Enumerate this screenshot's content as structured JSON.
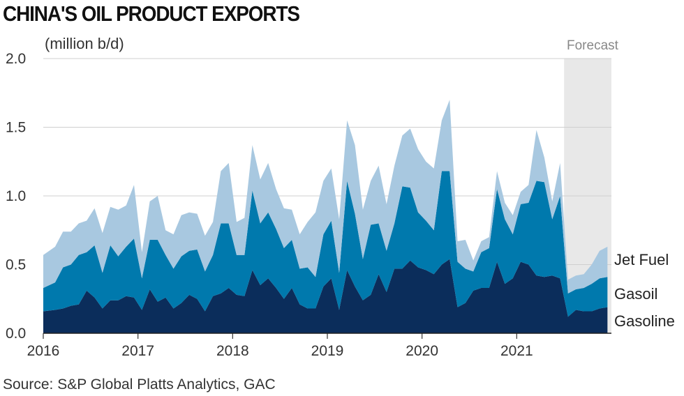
{
  "title": "CHINA'S OIL PRODUCT EXPORTS",
  "unit_label": "(million b/d)",
  "forecast_label": "Forecast",
  "source": "Source: S&P Global Platts Analytics, GAC",
  "legend": {
    "jet_fuel": "Jet Fuel",
    "gasoil": "Gasoil",
    "gasoline": "Gasoline"
  },
  "colors": {
    "gasoline": "#0b2d5b",
    "gasoil": "#0079ad",
    "jet_fuel": "#a8c8e0",
    "forecast_shade": "#e8e8e8",
    "grid": "#cfcfcf"
  },
  "chart_data": {
    "type": "area",
    "stacked": true,
    "title": "CHINA'S OIL PRODUCT EXPORTS",
    "ylabel": "(million b/d)",
    "ylim": [
      0,
      2.0
    ],
    "yticks": [
      "0.0",
      "0.5",
      "1.0",
      "1.5",
      "2.0"
    ],
    "xticks": [
      "2016",
      "2017",
      "2018",
      "2019",
      "2020",
      "2021"
    ],
    "x_start": "2016-01",
    "x_end": "2021-12",
    "forecast_start": "2021-07",
    "grid": true,
    "legend_position": "right",
    "series": [
      {
        "name": "Gasoline",
        "values": [
          0.16,
          0.17,
          0.18,
          0.2,
          0.21,
          0.31,
          0.26,
          0.18,
          0.24,
          0.24,
          0.27,
          0.26,
          0.17,
          0.32,
          0.23,
          0.26,
          0.18,
          0.22,
          0.28,
          0.25,
          0.16,
          0.27,
          0.29,
          0.33,
          0.28,
          0.27,
          0.46,
          0.35,
          0.4,
          0.33,
          0.25,
          0.33,
          0.21,
          0.18,
          0.18,
          0.34,
          0.4,
          0.17,
          0.46,
          0.34,
          0.24,
          0.28,
          0.43,
          0.3,
          0.47,
          0.47,
          0.53,
          0.48,
          0.46,
          0.43,
          0.5,
          0.54,
          0.19,
          0.22,
          0.31,
          0.33,
          0.33,
          0.52,
          0.36,
          0.4,
          0.52,
          0.5,
          0.42,
          0.41,
          0.42,
          0.4,
          0.12,
          0.17,
          0.16,
          0.16,
          0.18,
          0.19
        ]
      },
      {
        "name": "Gasoil",
        "values": [
          0.17,
          0.2,
          0.3,
          0.3,
          0.36,
          0.28,
          0.38,
          0.26,
          0.4,
          0.32,
          0.36,
          0.43,
          0.23,
          0.36,
          0.45,
          0.31,
          0.29,
          0.34,
          0.32,
          0.36,
          0.29,
          0.3,
          0.51,
          0.47,
          0.29,
          0.3,
          0.58,
          0.45,
          0.48,
          0.43,
          0.37,
          0.35,
          0.26,
          0.3,
          0.23,
          0.38,
          0.42,
          0.27,
          0.65,
          0.53,
          0.3,
          0.51,
          0.37,
          0.3,
          0.33,
          0.6,
          0.53,
          0.4,
          0.36,
          0.32,
          0.68,
          0.64,
          0.33,
          0.25,
          0.14,
          0.26,
          0.29,
          0.53,
          0.47,
          0.32,
          0.42,
          0.45,
          0.69,
          0.69,
          0.41,
          0.6,
          0.17,
          0.15,
          0.17,
          0.2,
          0.22,
          0.22
        ]
      },
      {
        "name": "Jet Fuel",
        "values": [
          0.24,
          0.26,
          0.26,
          0.24,
          0.23,
          0.23,
          0.27,
          0.29,
          0.28,
          0.34,
          0.3,
          0.39,
          0.19,
          0.28,
          0.32,
          0.18,
          0.25,
          0.3,
          0.28,
          0.26,
          0.26,
          0.24,
          0.38,
          0.44,
          0.24,
          0.27,
          0.33,
          0.32,
          0.36,
          0.29,
          0.29,
          0.22,
          0.25,
          0.33,
          0.47,
          0.39,
          0.38,
          0.39,
          0.44,
          0.5,
          0.36,
          0.32,
          0.42,
          0.34,
          0.42,
          0.37,
          0.43,
          0.46,
          0.43,
          0.45,
          0.37,
          0.52,
          0.15,
          0.21,
          0.08,
          0.08,
          0.08,
          0.13,
          0.12,
          0.14,
          0.09,
          0.13,
          0.37,
          0.18,
          0.13,
          0.24,
          0.1,
          0.1,
          0.1,
          0.14,
          0.2,
          0.22
        ]
      }
    ]
  }
}
